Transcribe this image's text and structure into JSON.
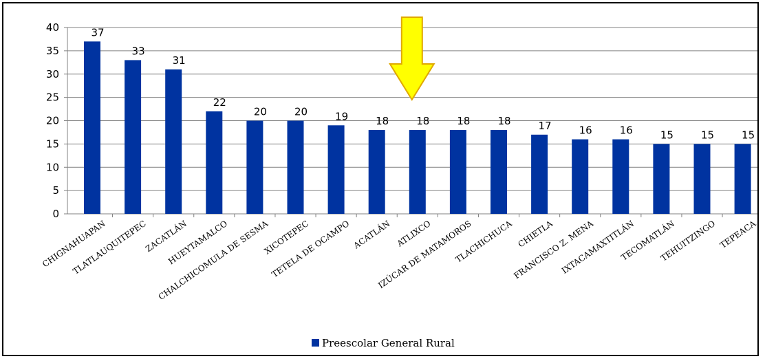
{
  "chart_data": {
    "type": "bar",
    "categories": [
      "CHIGNAHUAPAN",
      "TLATLAUQUITEPEC",
      "ZACATLÁN",
      "HUEYTAMALCO",
      "CHALCHICOMULA DE SESMA",
      "XICOTEPEC",
      "TETELA DE OCAMPO",
      "ACATLÁN",
      "ATLIXCO",
      "IZÚCAR DE MATAMOROS",
      "TLACHICHUCA",
      "CHIETLA",
      "FRANCISCO Z. MENA",
      "IXTACAMAXTITLÁN",
      "TECOMATLÁN",
      "TEHUITZINGO",
      "TEPEACA"
    ],
    "series": [
      {
        "name": "Preescolar General Rural",
        "values": [
          37,
          33,
          31,
          22,
          20,
          20,
          19,
          18,
          18,
          18,
          18,
          17,
          16,
          16,
          15,
          15,
          15
        ]
      }
    ],
    "ylim": [
      0,
      40
    ],
    "yticks": [
      0,
      5,
      10,
      15,
      20,
      25,
      30,
      35,
      40
    ],
    "grid": true,
    "legend_position": "bottom",
    "highlight_category": "ATLIXCO",
    "colors": {
      "bar": "#0033A0",
      "arrow_fill": "#FFFF00",
      "arrow_stroke": "#E0A800",
      "grid": "#808080"
    }
  }
}
